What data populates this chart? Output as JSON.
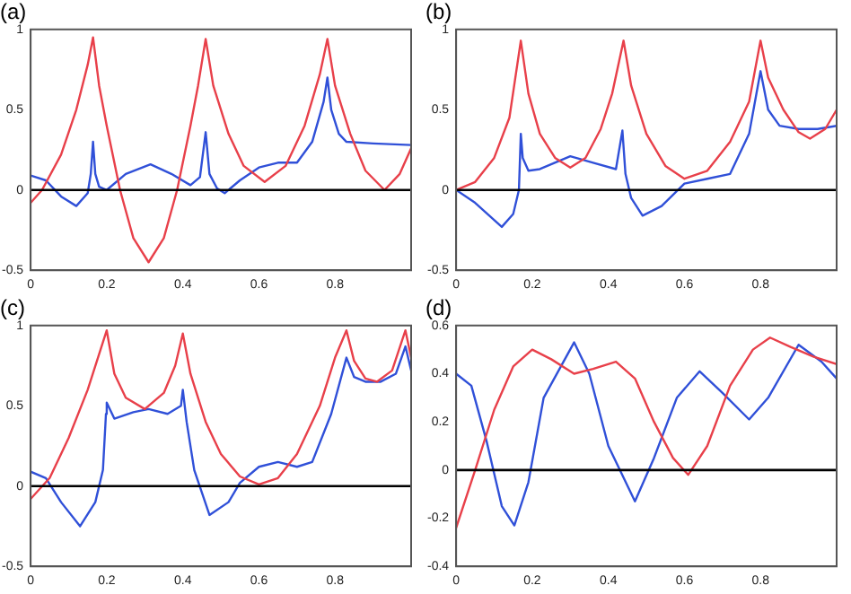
{
  "chart_data": [
    {
      "type": "line",
      "title": "(a)",
      "xlim": [
        0,
        1
      ],
      "xticks": [
        0,
        0.2,
        0.4,
        0.6,
        0.8
      ],
      "ylim": [
        -0.5,
        1
      ],
      "yticks": [
        -0.5,
        0,
        0.5,
        1
      ],
      "grid": false,
      "legend": false,
      "marker": "none",
      "line_style": "solid",
      "ref_lines": [
        {
          "axis": "y",
          "value": 0,
          "color": "#000000"
        }
      ],
      "series": [
        {
          "color": "#e8404a",
          "x": [
            0,
            0.03,
            0.08,
            0.12,
            0.15,
            0.164,
            0.18,
            0.2,
            0.235,
            0.27,
            0.31,
            0.35,
            0.385,
            0.42,
            0.44,
            0.46,
            0.48,
            0.52,
            0.56,
            0.615,
            0.67,
            0.72,
            0.76,
            0.78,
            0.8,
            0.84,
            0.88,
            0.93,
            0.97,
            1
          ],
          "values": [
            -0.08,
            0,
            0.22,
            0.5,
            0.78,
            0.95,
            0.65,
            0.4,
            0,
            -0.3,
            -0.45,
            -0.3,
            0,
            0.4,
            0.65,
            0.94,
            0.65,
            0.35,
            0.15,
            0.05,
            0.15,
            0.4,
            0.72,
            0.94,
            0.65,
            0.35,
            0.12,
            0,
            0.1,
            0.26
          ]
        },
        {
          "color": "#3050d8",
          "x": [
            0,
            0.04,
            0.08,
            0.12,
            0.15,
            0.158,
            0.164,
            0.17,
            0.18,
            0.2,
            0.25,
            0.315,
            0.37,
            0.42,
            0.445,
            0.46,
            0.47,
            0.49,
            0.51,
            0.55,
            0.6,
            0.65,
            0.7,
            0.74,
            0.77,
            0.78,
            0.79,
            0.81,
            0.83,
            0.9,
            1
          ],
          "values": [
            0.09,
            0.06,
            -0.04,
            -0.1,
            -0.02,
            0.1,
            0.3,
            0.1,
            0.02,
            0,
            0.1,
            0.16,
            0.1,
            0.03,
            0.08,
            0.36,
            0.1,
            0.01,
            -0.02,
            0.06,
            0.14,
            0.17,
            0.17,
            0.3,
            0.55,
            0.7,
            0.5,
            0.35,
            0.3,
            0.29,
            0.28
          ]
        }
      ]
    },
    {
      "type": "line",
      "title": "(b)",
      "xlim": [
        0,
        1
      ],
      "xticks": [
        0,
        0.2,
        0.4,
        0.6,
        0.8
      ],
      "ylim": [
        -0.5,
        1
      ],
      "yticks": [
        -0.5,
        0,
        0.5,
        1
      ],
      "grid": false,
      "legend": false,
      "marker": "none",
      "line_style": "solid",
      "ref_lines": [
        {
          "axis": "y",
          "value": 0,
          "color": "#000000"
        }
      ],
      "series": [
        {
          "color": "#e8404a",
          "x": [
            0,
            0.05,
            0.1,
            0.14,
            0.17,
            0.19,
            0.22,
            0.26,
            0.3,
            0.34,
            0.38,
            0.41,
            0.44,
            0.46,
            0.5,
            0.55,
            0.6,
            0.66,
            0.72,
            0.77,
            0.8,
            0.82,
            0.86,
            0.9,
            0.93,
            0.97,
            1
          ],
          "values": [
            0,
            0.05,
            0.2,
            0.45,
            0.93,
            0.6,
            0.35,
            0.2,
            0.14,
            0.2,
            0.38,
            0.6,
            0.93,
            0.65,
            0.35,
            0.15,
            0.07,
            0.12,
            0.3,
            0.55,
            0.93,
            0.7,
            0.5,
            0.36,
            0.32,
            0.38,
            0.5
          ]
        },
        {
          "color": "#3050d8",
          "x": [
            0,
            0.05,
            0.12,
            0.15,
            0.165,
            0.17,
            0.175,
            0.19,
            0.22,
            0.3,
            0.36,
            0.42,
            0.437,
            0.445,
            0.46,
            0.49,
            0.54,
            0.6,
            0.66,
            0.72,
            0.77,
            0.8,
            0.82,
            0.85,
            0.9,
            0.95,
            1
          ],
          "values": [
            0,
            -0.08,
            -0.23,
            -0.15,
            0,
            0.35,
            0.2,
            0.12,
            0.13,
            0.21,
            0.17,
            0.13,
            0.37,
            0.1,
            -0.05,
            -0.16,
            -0.1,
            0.04,
            0.07,
            0.1,
            0.35,
            0.74,
            0.5,
            0.4,
            0.38,
            0.38,
            0.4
          ]
        }
      ]
    },
    {
      "type": "line",
      "title": "(c)",
      "xlim": [
        0,
        1
      ],
      "xticks": [
        0,
        0.2,
        0.4,
        0.6,
        0.8
      ],
      "ylim": [
        -0.5,
        1
      ],
      "yticks": [
        -0.5,
        0,
        0.5,
        1
      ],
      "grid": false,
      "legend": false,
      "marker": "none",
      "line_style": "solid",
      "ref_lines": [
        {
          "axis": "y",
          "value": 0,
          "color": "#000000"
        }
      ],
      "series": [
        {
          "color": "#e8404a",
          "x": [
            0,
            0.05,
            0.1,
            0.15,
            0.2,
            0.22,
            0.25,
            0.3,
            0.35,
            0.38,
            0.4,
            0.42,
            0.46,
            0.5,
            0.55,
            0.6,
            0.65,
            0.7,
            0.76,
            0.8,
            0.83,
            0.85,
            0.88,
            0.91,
            0.95,
            0.985,
            1
          ],
          "values": [
            -0.08,
            0.05,
            0.3,
            0.6,
            0.97,
            0.7,
            0.55,
            0.48,
            0.58,
            0.75,
            0.95,
            0.7,
            0.4,
            0.2,
            0.06,
            0.01,
            0.05,
            0.2,
            0.5,
            0.8,
            0.97,
            0.78,
            0.67,
            0.65,
            0.72,
            0.97,
            0.8
          ]
        },
        {
          "color": "#3050d8",
          "x": [
            0,
            0.04,
            0.08,
            0.13,
            0.17,
            0.19,
            0.198,
            0.2,
            0.22,
            0.27,
            0.31,
            0.36,
            0.395,
            0.4,
            0.41,
            0.43,
            0.47,
            0.52,
            0.55,
            0.6,
            0.65,
            0.7,
            0.74,
            0.79,
            0.83,
            0.85,
            0.88,
            0.92,
            0.96,
            0.985,
            1
          ],
          "values": [
            0.09,
            0.05,
            -0.1,
            -0.25,
            -0.1,
            0.1,
            0.45,
            0.52,
            0.42,
            0.46,
            0.48,
            0.45,
            0.5,
            0.6,
            0.4,
            0.1,
            -0.18,
            -0.1,
            0.02,
            0.12,
            0.15,
            0.12,
            0.15,
            0.45,
            0.8,
            0.68,
            0.65,
            0.65,
            0.7,
            0.87,
            0.72
          ]
        }
      ]
    },
    {
      "type": "line",
      "title": "(d)",
      "xlim": [
        0,
        1
      ],
      "xticks": [
        0,
        0.2,
        0.4,
        0.6,
        0.8
      ],
      "ylim": [
        -0.4,
        0.6
      ],
      "yticks": [
        -0.4,
        -0.2,
        0,
        0.2,
        0.4,
        0.6
      ],
      "grid": false,
      "legend": false,
      "marker": "none",
      "line_style": "solid",
      "ref_lines": [
        {
          "axis": "y",
          "value": 0,
          "color": "#000000"
        }
      ],
      "series": [
        {
          "color": "#e8404a",
          "x": [
            0,
            0.05,
            0.1,
            0.15,
            0.2,
            0.25,
            0.31,
            0.36,
            0.42,
            0.47,
            0.52,
            0.57,
            0.61,
            0.66,
            0.72,
            0.78,
            0.825,
            0.88,
            0.94,
            1
          ],
          "values": [
            -0.24,
            0,
            0.25,
            0.43,
            0.5,
            0.46,
            0.4,
            0.42,
            0.45,
            0.38,
            0.2,
            0.05,
            -0.02,
            0.1,
            0.35,
            0.5,
            0.55,
            0.51,
            0.47,
            0.44
          ]
        },
        {
          "color": "#3050d8",
          "x": [
            0,
            0.04,
            0.08,
            0.12,
            0.153,
            0.19,
            0.23,
            0.31,
            0.35,
            0.4,
            0.47,
            0.52,
            0.58,
            0.64,
            0.7,
            0.77,
            0.82,
            0.9,
            0.96,
            1
          ],
          "values": [
            0.4,
            0.35,
            0.12,
            -0.15,
            -0.23,
            -0.05,
            0.3,
            0.53,
            0.4,
            0.1,
            -0.13,
            0.05,
            0.3,
            0.41,
            0.32,
            0.21,
            0.3,
            0.52,
            0.45,
            0.38
          ]
        }
      ]
    }
  ]
}
